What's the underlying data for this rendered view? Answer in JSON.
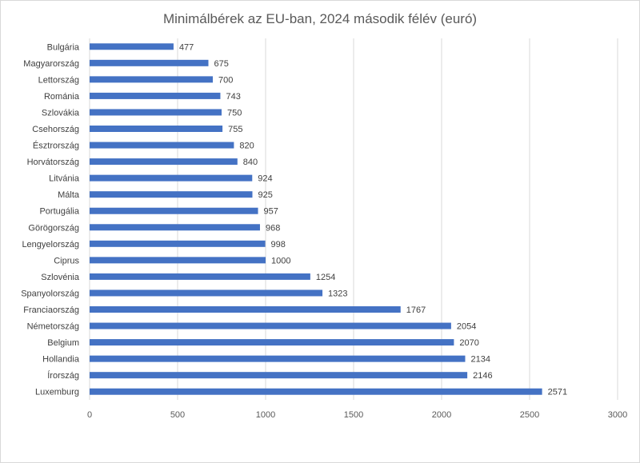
{
  "chart_data": {
    "type": "bar",
    "orientation": "horizontal",
    "title": "Minimálbérek az EU-ban, 2024 második félév (euró)",
    "categories": [
      "Bulgária",
      "Magyarország",
      "Lettország",
      "Románia",
      "Szlovákia",
      "Csehország",
      "Észtrország",
      "Horvátország",
      "Litvánia",
      "Málta",
      "Portugália",
      "Görögország",
      "Lengyelország",
      "Ciprus",
      "Szlovénia",
      "Spanyolország",
      "Franciaország",
      "Németország",
      "Belgium",
      "Hollandia",
      "Írország",
      "Luxemburg"
    ],
    "values": [
      477,
      675,
      700,
      743,
      750,
      755,
      820,
      840,
      924,
      925,
      957,
      968,
      998,
      1000,
      1254,
      1323,
      1767,
      2054,
      2070,
      2134,
      2146,
      2571
    ],
    "data_labels": [
      "477",
      "675",
      "700",
      "743",
      "750",
      "755",
      "820",
      "840",
      "924",
      "925",
      "957",
      "968",
      "998",
      "1000",
      "1254",
      "1323",
      "1767",
      "2054",
      "2070",
      "2134",
      "2146",
      "2571"
    ],
    "xlim": [
      0,
      3000
    ],
    "x_ticks": [
      0,
      500,
      1000,
      1500,
      2000,
      2500,
      3000
    ],
    "x_tick_labels": [
      "0",
      "500",
      "1000",
      "1500",
      "2000",
      "2500",
      "3000"
    ],
    "grid": "vertical",
    "legend": "none",
    "bar_color": "#4472c4",
    "grid_color": "#d9d9d9"
  }
}
